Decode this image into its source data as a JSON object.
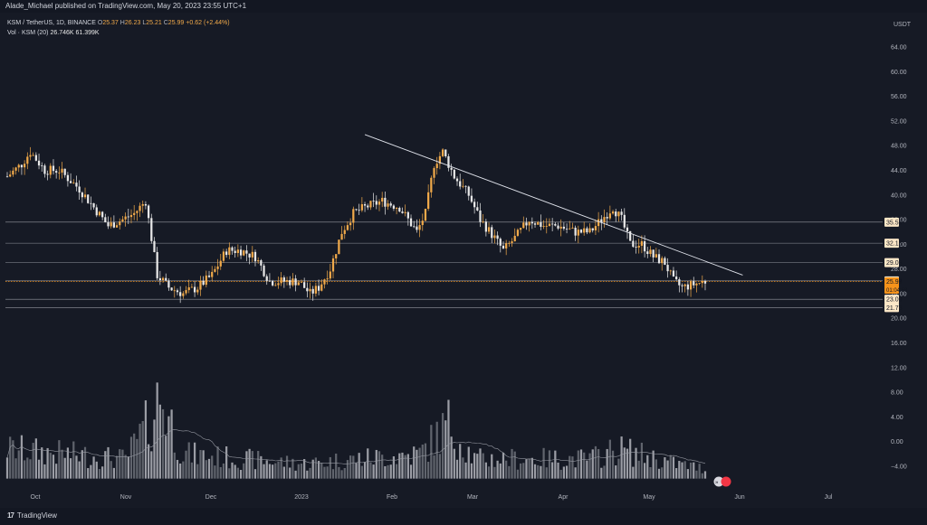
{
  "header": {
    "publisher": "Alade_Michael published on TradingView.com, May 20, 2023 23:55 UTC+1"
  },
  "legend": {
    "symbol": "KSM / TetherUS, 1D, BINANCE",
    "o_label": "O",
    "o": "25.37",
    "h_label": "H",
    "h": "26.23",
    "l_label": "L",
    "l": "25.21",
    "c_label": "C",
    "c": "25.99",
    "change": "+0.62 (+2.44%)",
    "vol_label": "Vol · KSM (20)",
    "vol": "26.746K",
    "vol_ma": "61.399K"
  },
  "footer": {
    "brand_icon": "17",
    "brand": "TradingView"
  },
  "colors": {
    "background": "#161a25",
    "up": "#f0a94a",
    "down": "#e8e8e8",
    "price_tag": "#f7931a",
    "level_tag": "#fbe6c6"
  },
  "chart_data": {
    "type": "candlestick",
    "currency_label": "USDT",
    "y_ticks": [
      "64.00",
      "60.00",
      "56.00",
      "52.00",
      "48.00",
      "44.00",
      "40.00",
      "36.00",
      "32.00",
      "28.00",
      "24.00",
      "20.00",
      "16.00",
      "12.00",
      "8.00",
      "4.00",
      "0.00",
      "−4.00"
    ],
    "ylim": [
      -6,
      67
    ],
    "x_ticks": [
      "Oct",
      "Nov",
      "Dec",
      "2023",
      "Feb",
      "Mar",
      "Apr",
      "May",
      "Jun",
      "Jul"
    ],
    "price_levels": [
      "35.59",
      "32.18",
      "29.03",
      "26.07",
      "23.09",
      "21.73"
    ],
    "current_price": "25.99",
    "countdown": "01:04:58",
    "trendline": {
      "from": {
        "date": "2023-01-22",
        "price": 49.8
      },
      "to": {
        "date": "2023-06-02",
        "price": 27.0
      }
    },
    "close_path": [
      [
        "2022-09-20",
        43
      ],
      [
        "2022-09-25",
        45
      ],
      [
        "2022-09-28",
        47
      ],
      [
        "2022-10-03",
        44
      ],
      [
        "2022-10-08",
        44
      ],
      [
        "2022-10-15",
        41
      ],
      [
        "2022-10-20",
        38
      ],
      [
        "2022-10-25",
        35
      ],
      [
        "2022-10-30",
        36
      ],
      [
        "2022-11-03",
        37
      ],
      [
        "2022-11-07",
        39
      ],
      [
        "2022-11-09",
        33
      ],
      [
        "2022-11-11",
        27
      ],
      [
        "2022-11-15",
        25
      ],
      [
        "2022-11-20",
        24
      ],
      [
        "2022-11-25",
        25
      ],
      [
        "2022-11-30",
        27
      ],
      [
        "2022-12-05",
        31
      ],
      [
        "2022-12-10",
        31
      ],
      [
        "2022-12-15",
        30
      ],
      [
        "2022-12-20",
        26
      ],
      [
        "2022-12-25",
        26
      ],
      [
        "2022-12-30",
        26
      ],
      [
        "2023-01-03",
        24
      ],
      [
        "2023-01-06",
        25
      ],
      [
        "2023-01-10",
        28
      ],
      [
        "2023-01-14",
        34
      ],
      [
        "2023-01-18",
        37
      ],
      [
        "2023-01-22",
        38
      ],
      [
        "2023-01-28",
        39
      ],
      [
        "2023-02-03",
        38
      ],
      [
        "2023-02-06",
        36
      ],
      [
        "2023-02-09",
        34
      ],
      [
        "2023-02-12",
        37
      ],
      [
        "2023-02-15",
        45
      ],
      [
        "2023-02-18",
        47
      ],
      [
        "2023-02-22",
        43
      ],
      [
        "2023-02-27",
        40
      ],
      [
        "2023-03-03",
        36
      ],
      [
        "2023-03-08",
        33
      ],
      [
        "2023-03-11",
        31
      ],
      [
        "2023-03-15",
        33
      ],
      [
        "2023-03-20",
        36
      ],
      [
        "2023-03-25",
        35
      ],
      [
        "2023-03-30",
        35
      ],
      [
        "2023-04-05",
        34
      ],
      [
        "2023-04-10",
        34
      ],
      [
        "2023-04-14",
        36
      ],
      [
        "2023-04-18",
        38
      ],
      [
        "2023-04-21",
        36
      ],
      [
        "2023-04-24",
        32
      ],
      [
        "2023-04-28",
        32
      ],
      [
        "2023-05-02",
        30
      ],
      [
        "2023-05-06",
        29
      ],
      [
        "2023-05-09",
        26
      ],
      [
        "2023-05-12",
        25
      ],
      [
        "2023-05-16",
        25.5
      ],
      [
        "2023-05-20",
        26
      ]
    ],
    "volume_profile": [
      [
        "2022-09-20",
        6
      ],
      [
        "2022-10-10",
        5
      ],
      [
        "2022-10-31",
        4
      ],
      [
        "2022-11-09",
        12
      ],
      [
        "2022-11-12",
        17
      ],
      [
        "2022-11-20",
        5
      ],
      [
        "2022-12-10",
        4
      ],
      [
        "2023-01-01",
        3
      ],
      [
        "2023-01-20",
        4
      ],
      [
        "2023-02-10",
        5
      ],
      [
        "2023-02-20",
        11
      ],
      [
        "2023-03-01",
        4
      ],
      [
        "2023-03-20",
        4
      ],
      [
        "2023-04-10",
        4
      ],
      [
        "2023-04-20",
        6
      ],
      [
        "2023-05-10",
        3
      ],
      [
        "2023-05-20",
        2
      ]
    ]
  }
}
